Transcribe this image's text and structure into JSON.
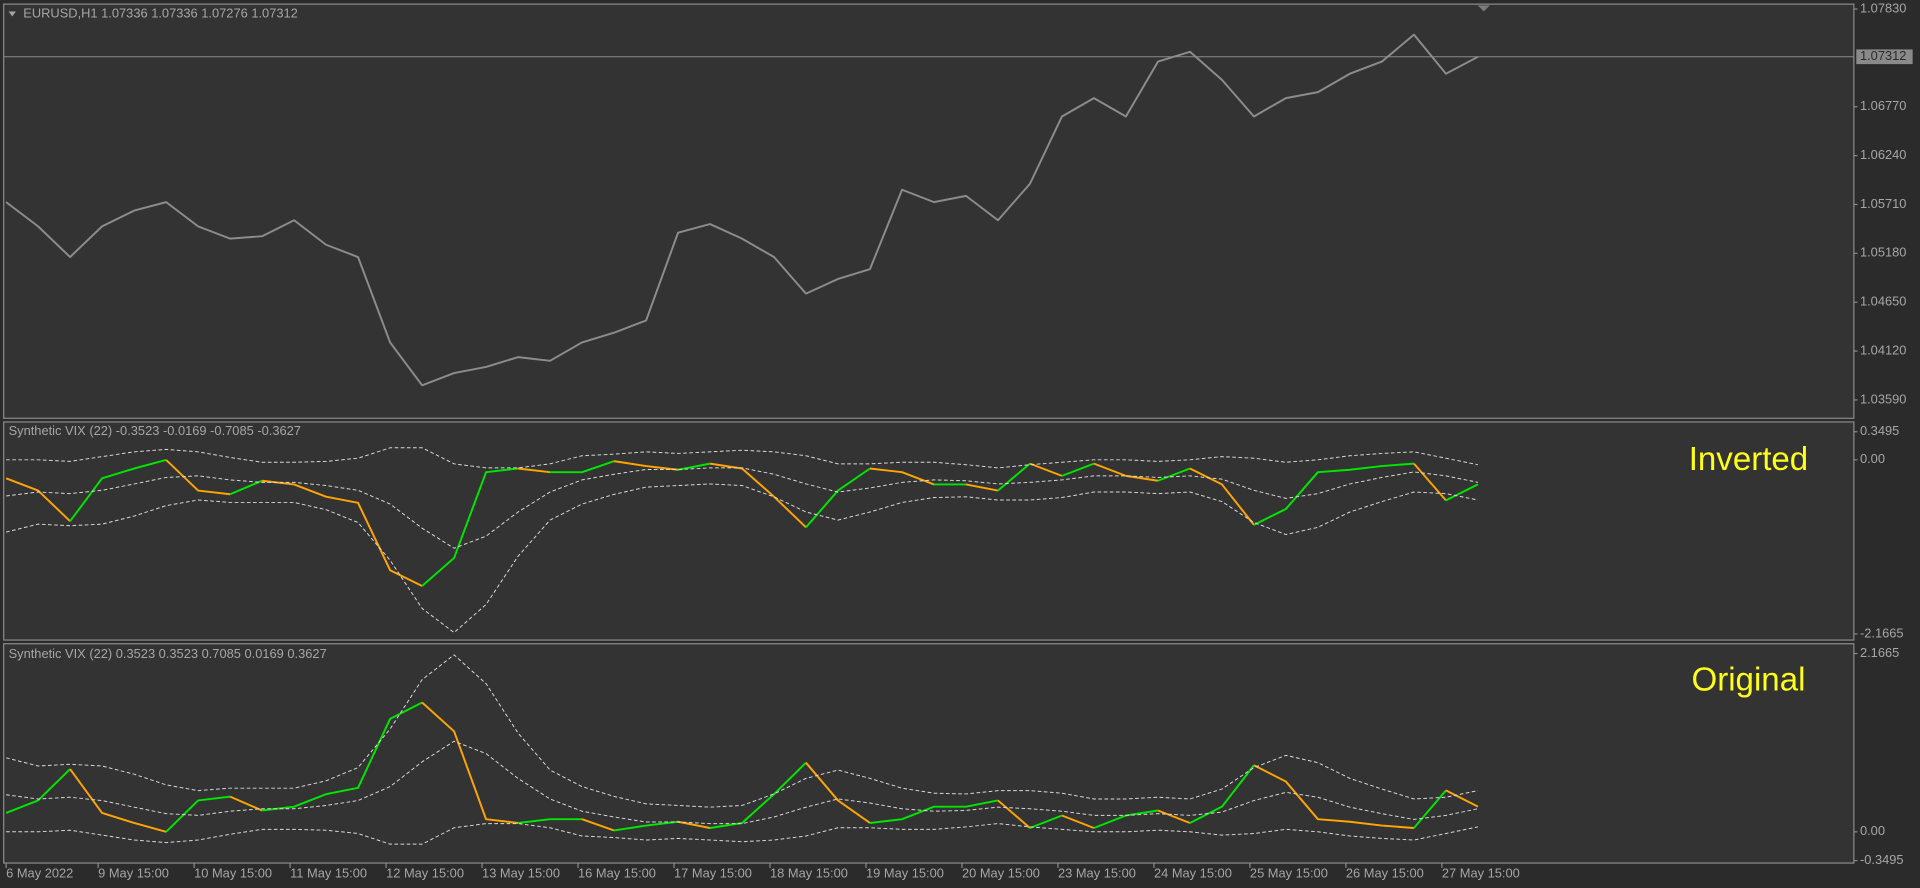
{
  "chart_data": [
    {
      "type": "line",
      "title": "EURUSD,H1  1.07336 1.07336 1.07276 1.07312",
      "x": [
        0,
        8,
        16,
        24,
        32,
        40,
        48,
        56,
        64,
        72,
        80,
        88,
        96,
        104,
        112,
        120,
        128,
        136,
        144,
        152,
        160,
        168,
        176,
        184,
        192,
        200,
        208,
        216,
        224,
        232,
        240,
        248,
        256,
        264,
        272,
        280,
        288,
        296,
        304,
        312,
        320,
        328,
        336,
        344,
        352,
        360,
        368
      ],
      "series": [
        {
          "color": "#8c8c8c",
          "values": [
            1.05736,
            1.05472,
            1.0514,
            1.05472,
            1.05644,
            1.05736,
            1.05472,
            1.05339,
            1.05366,
            1.05538,
            1.05273,
            1.0514,
            1.04213,
            1.03749,
            1.03881,
            1.03948,
            1.04054,
            1.04014,
            1.04213,
            1.04319,
            1.04451,
            1.05405,
            1.05498,
            1.05339,
            1.0514,
            1.04743,
            1.04902,
            1.05008,
            1.05869,
            1.05736,
            1.05803,
            1.05538,
            1.05935,
            1.06664,
            1.06863,
            1.06664,
            1.0726,
            1.07366,
            1.07062,
            1.06664,
            1.06863,
            1.06929,
            1.07128,
            1.0726,
            1.07552,
            1.07128,
            1.07312
          ]
        }
      ],
      "xlim": [
        0,
        462
      ],
      "ylim": [
        1.03391,
        1.07883
      ],
      "yticks": [
        {
          "value": 1.0783,
          "label": "1.07830"
        },
        {
          "value": 1.0677,
          "label": "1.06770"
        },
        {
          "value": 1.0624,
          "label": "1.06240"
        },
        {
          "value": 1.0571,
          "label": "1.05710"
        },
        {
          "value": 1.0518,
          "label": "1.05180"
        },
        {
          "value": 1.0465,
          "label": "1.04650"
        },
        {
          "value": 1.0412,
          "label": "1.04120"
        },
        {
          "value": 1.0359,
          "label": "1.03590"
        }
      ],
      "current_price": {
        "value": 1.07312,
        "label": "1.07312"
      }
    },
    {
      "type": "line",
      "title": "Synthetic VIX (22) -0.3523 -0.0169 -0.7085 -0.3627",
      "annotation": "Inverted",
      "x": [
        0,
        8,
        16,
        24,
        32,
        40,
        48,
        56,
        64,
        72,
        80,
        88,
        96,
        104,
        112,
        120,
        128,
        136,
        144,
        152,
        160,
        168,
        176,
        184,
        192,
        200,
        208,
        216,
        224,
        232,
        240,
        248,
        256,
        264,
        272,
        280,
        288,
        296,
        304,
        312,
        320,
        328,
        336,
        344,
        352,
        360,
        368
      ],
      "series": [
        {
          "up_color": "#00e600",
          "down_color": "#ffa500",
          "values": [
            -0.23,
            -0.382,
            -0.763,
            -0.23,
            -0.108,
            -0.001,
            -0.382,
            -0.428,
            -0.26,
            -0.306,
            -0.458,
            -0.535,
            -1.373,
            -1.571,
            -1.221,
            -0.154,
            -0.108,
            -0.154,
            -0.154,
            -0.016,
            -0.077,
            -0.123,
            -0.047,
            -0.108,
            -0.458,
            -0.84,
            -0.382,
            -0.108,
            -0.154,
            -0.306,
            -0.306,
            -0.382,
            -0.047,
            -0.199,
            -0.047,
            -0.199,
            -0.26,
            -0.108,
            -0.306,
            -0.809,
            -0.611,
            -0.154,
            -0.123,
            -0.077,
            -0.047,
            -0.504,
            -0.306
          ]
        },
        {
          "color": "#d9d9d9",
          "dashed": true,
          "values": [
            0,
            0,
            -0.02,
            0.04,
            0.1,
            0.13,
            0.1,
            0.03,
            -0.03,
            -0.03,
            -0.02,
            0.02,
            0.15,
            0.15,
            -0.05,
            -0.1,
            -0.1,
            -0.05,
            0.05,
            0.07,
            0.1,
            0.08,
            0.1,
            0.12,
            0.1,
            0.05,
            -0.05,
            -0.05,
            -0.03,
            -0.03,
            -0.06,
            -0.1,
            -0.06,
            -0.03,
            0,
            0,
            -0.02,
            0,
            0.04,
            0.02,
            -0.03,
            0,
            0.05,
            0.08,
            0.1,
            0.02,
            -0.06
          ]
        },
        {
          "color": "#d9d9d9",
          "dashed": true,
          "values": [
            -0.45,
            -0.4,
            -0.42,
            -0.38,
            -0.3,
            -0.22,
            -0.2,
            -0.25,
            -0.28,
            -0.28,
            -0.32,
            -0.38,
            -0.55,
            -0.85,
            -1.1,
            -0.95,
            -0.65,
            -0.4,
            -0.25,
            -0.18,
            -0.12,
            -0.12,
            -0.1,
            -0.1,
            -0.18,
            -0.3,
            -0.4,
            -0.35,
            -0.28,
            -0.25,
            -0.26,
            -0.3,
            -0.28,
            -0.25,
            -0.2,
            -0.2,
            -0.22,
            -0.2,
            -0.24,
            -0.38,
            -0.48,
            -0.42,
            -0.3,
            -0.22,
            -0.15,
            -0.2,
            -0.28
          ]
        },
        {
          "color": "#d9d9d9",
          "dashed": true,
          "values": [
            -0.9,
            -0.8,
            -0.82,
            -0.8,
            -0.7,
            -0.57,
            -0.5,
            -0.53,
            -0.53,
            -0.53,
            -0.62,
            -0.78,
            -1.25,
            -1.85,
            -2.15,
            -1.8,
            -1.2,
            -0.75,
            -0.55,
            -0.43,
            -0.34,
            -0.32,
            -0.3,
            -0.32,
            -0.46,
            -0.65,
            -0.75,
            -0.65,
            -0.53,
            -0.47,
            -0.46,
            -0.5,
            -0.5,
            -0.47,
            -0.4,
            -0.4,
            -0.42,
            -0.4,
            -0.52,
            -0.78,
            -0.93,
            -0.84,
            -0.65,
            -0.52,
            -0.4,
            -0.42,
            -0.5
          ]
        }
      ],
      "xlim": [
        0,
        462
      ],
      "ylim": [
        -2.1665,
        0.3495
      ],
      "yticks": [
        0.3495,
        {
          "value": 0,
          "label": "0.00"
        },
        -2.1665
      ]
    },
    {
      "type": "line",
      "title": "Synthetic VIX (22) 0.3523 0.3523 0.7085 0.0169 0.3627",
      "annotation": "Original",
      "x": [
        0,
        8,
        16,
        24,
        32,
        40,
        48,
        56,
        64,
        72,
        80,
        88,
        96,
        104,
        112,
        120,
        128,
        136,
        144,
        152,
        160,
        168,
        176,
        184,
        192,
        200,
        208,
        216,
        224,
        232,
        240,
        248,
        256,
        264,
        272,
        280,
        288,
        296,
        304,
        312,
        320,
        328,
        336,
        344,
        352,
        360,
        368
      ],
      "series": [
        {
          "up_color": "#00e600",
          "down_color": "#ffa500",
          "values": [
            0.23,
            0.382,
            0.763,
            0.23,
            0.108,
            0.001,
            0.382,
            0.428,
            0.26,
            0.306,
            0.458,
            0.535,
            1.373,
            1.571,
            1.221,
            0.154,
            0.108,
            0.154,
            0.154,
            0.016,
            0.077,
            0.123,
            0.047,
            0.108,
            0.458,
            0.84,
            0.382,
            0.108,
            0.154,
            0.306,
            0.306,
            0.382,
            0.047,
            0.199,
            0.047,
            0.199,
            0.26,
            0.108,
            0.306,
            0.809,
            0.611,
            0.154,
            0.123,
            0.077,
            0.047,
            0.504,
            0.306
          ]
        },
        {
          "color": "#d9d9d9",
          "dashed": true,
          "values": [
            0.9,
            0.8,
            0.82,
            0.8,
            0.7,
            0.57,
            0.5,
            0.53,
            0.53,
            0.53,
            0.62,
            0.78,
            1.25,
            1.85,
            2.15,
            1.8,
            1.2,
            0.75,
            0.55,
            0.43,
            0.34,
            0.32,
            0.3,
            0.32,
            0.46,
            0.65,
            0.75,
            0.65,
            0.53,
            0.47,
            0.46,
            0.5,
            0.5,
            0.47,
            0.4,
            0.4,
            0.42,
            0.4,
            0.52,
            0.78,
            0.93,
            0.84,
            0.65,
            0.52,
            0.4,
            0.42,
            0.5
          ]
        },
        {
          "color": "#d9d9d9",
          "dashed": true,
          "values": [
            0.45,
            0.4,
            0.42,
            0.38,
            0.3,
            0.22,
            0.2,
            0.25,
            0.28,
            0.28,
            0.32,
            0.38,
            0.55,
            0.85,
            1.1,
            0.95,
            0.65,
            0.4,
            0.25,
            0.18,
            0.12,
            0.12,
            0.1,
            0.1,
            0.18,
            0.3,
            0.4,
            0.35,
            0.28,
            0.25,
            0.26,
            0.3,
            0.28,
            0.25,
            0.2,
            0.2,
            0.22,
            0.2,
            0.24,
            0.38,
            0.48,
            0.42,
            0.3,
            0.22,
            0.15,
            0.2,
            0.28
          ]
        },
        {
          "color": "#d9d9d9",
          "dashed": true,
          "values": [
            0,
            0,
            0.02,
            -0.04,
            -0.1,
            -0.13,
            -0.1,
            -0.03,
            0.03,
            0.03,
            0.02,
            -0.02,
            -0.15,
            -0.15,
            0.05,
            0.1,
            0.1,
            0.05,
            -0.05,
            -0.07,
            -0.1,
            -0.08,
            -0.1,
            -0.12,
            -0.1,
            -0.05,
            0.05,
            0.05,
            0.03,
            0.03,
            0.06,
            0.1,
            0.06,
            0.03,
            0,
            0,
            0.02,
            0,
            -0.04,
            -0.02,
            0.03,
            0,
            -0.05,
            -0.08,
            -0.1,
            -0.02,
            0.06
          ]
        }
      ],
      "xlim": [
        0,
        462
      ],
      "ylim": [
        -0.3495,
        2.1665
      ],
      "yticks": [
        2.1665,
        {
          "value": 0,
          "label": "0.00"
        },
        -0.3495
      ],
      "xticks": [
        {
          "value": 0,
          "label": "6 May 2022"
        },
        {
          "value": 23,
          "label": "9 May 15:00"
        },
        {
          "value": 47,
          "label": "10 May 15:00"
        },
        {
          "value": 71,
          "label": "11 May 15:00"
        },
        {
          "value": 95,
          "label": "12 May 15:00"
        },
        {
          "value": 119,
          "label": "13 May 15:00"
        },
        {
          "value": 143,
          "label": "16 May 15:00"
        },
        {
          "value": 167,
          "label": "17 May 15:00"
        },
        {
          "value": 191,
          "label": "18 May 15:00"
        },
        {
          "value": 215,
          "label": "19 May 15:00"
        },
        {
          "value": 239,
          "label": "20 May 15:00"
        },
        {
          "value": 263,
          "label": "23 May 15:00"
        },
        {
          "value": 287,
          "label": "24 May 15:00"
        },
        {
          "value": 311,
          "label": "25 May 15:00"
        },
        {
          "value": 335,
          "label": "26 May 15:00"
        },
        {
          "value": 359,
          "label": "27 May 15:00"
        }
      ]
    }
  ]
}
